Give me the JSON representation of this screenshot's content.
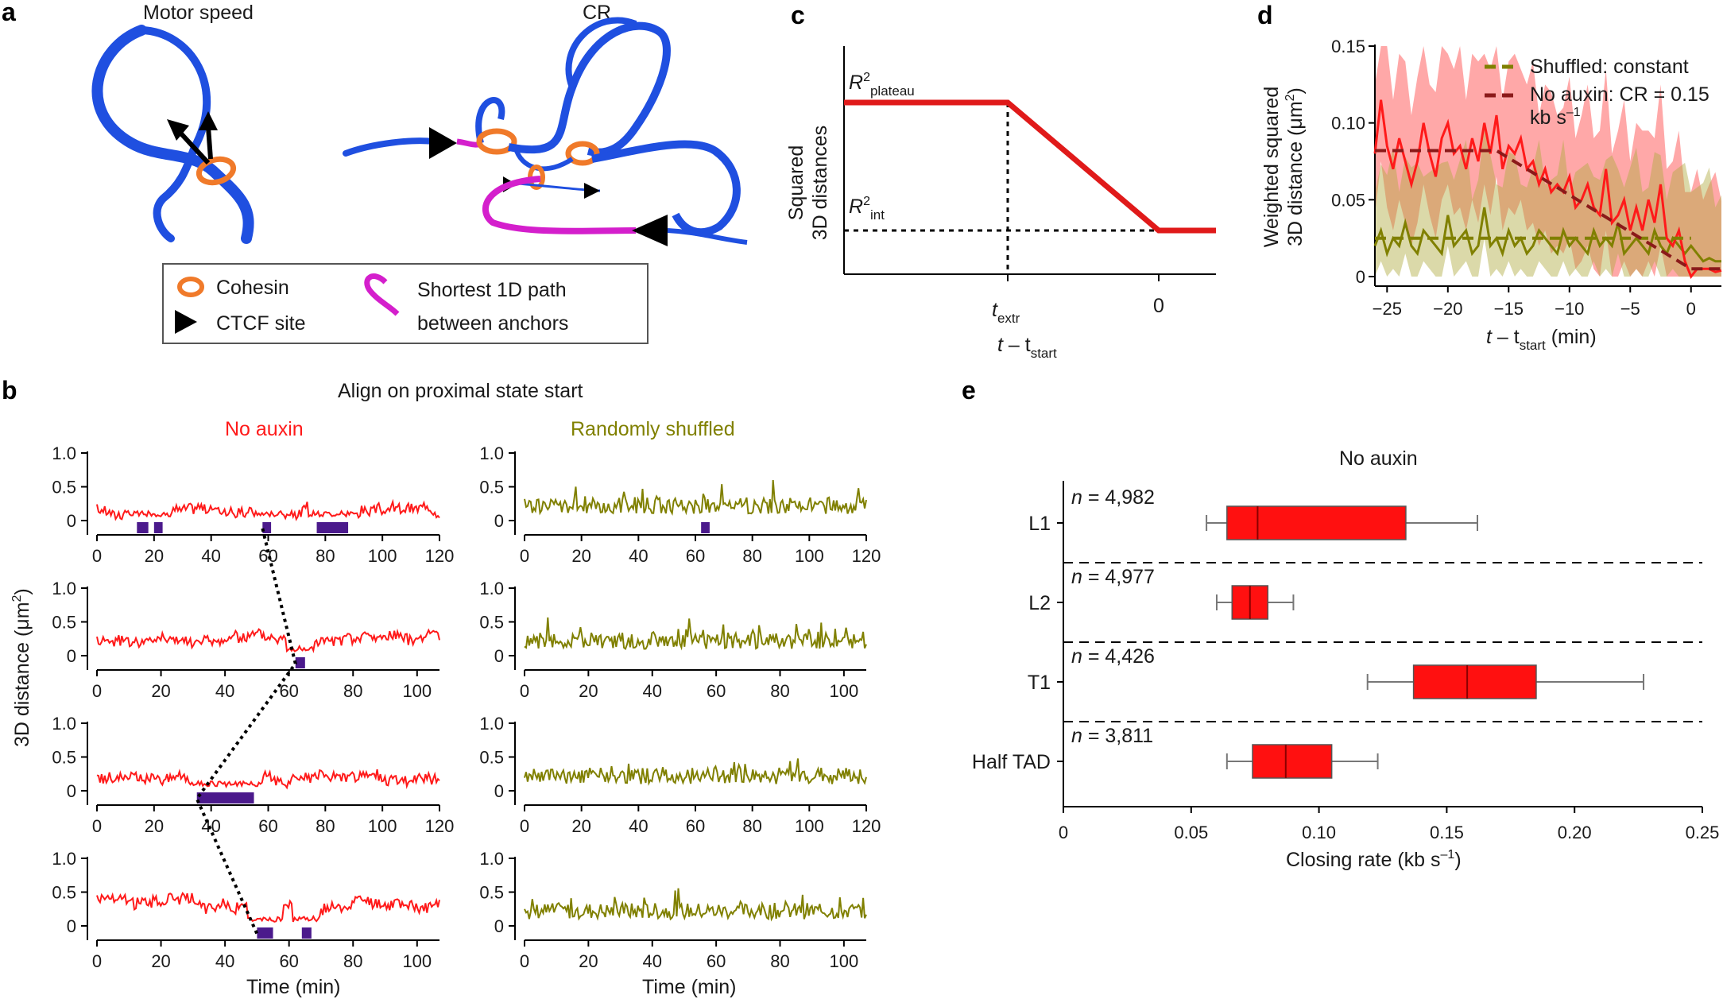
{
  "panels": {
    "a": {
      "label": "a",
      "left_title": "Motor speed",
      "right_title": "CR",
      "legend": {
        "cohesin": "Cohesin",
        "ctcf": "CTCF site",
        "path_line1": "Shortest 1D path",
        "path_line2": "between anchors"
      }
    },
    "b": {
      "label": "b",
      "title": "Align on proximal state start",
      "left_header": "No auxin",
      "right_header": "Randomly shuffled",
      "ylabel": "3D distance (μm",
      "ylabel_sup": "2",
      "ylabel_end": ")",
      "xlabel": "Time (min)",
      "yticks": [
        "0",
        "0.5",
        "1.0"
      ]
    },
    "c": {
      "label": "c",
      "ylabel_line1": "Squared",
      "ylabel_line2": "3D distances",
      "r_plateau": "R",
      "r_plateau_sup": "2",
      "r_plateau_sub": "plateau",
      "r_int": "R",
      "r_int_sup": "2",
      "r_int_sub": "int",
      "t_extr": "t",
      "t_extr_sub": "extr",
      "zero": "0",
      "xlabel_t": "t",
      "xlabel_mid": " – t",
      "xlabel_sub": "start"
    },
    "d": {
      "label": "d",
      "ylabel_line1": "Weighted squared",
      "ylabel_line2": "3D distance (μm",
      "ylabel_sup": "2",
      "ylabel_end": ")",
      "legend_shuffled": "Shuffled: constant",
      "legend_noauxin": "No auxin: CR = 0.15",
      "legend_noauxin_unit": "kb s",
      "legend_noauxin_sup": "–1",
      "xlabel_t": "t",
      "xlabel_mid": " – t",
      "xlabel_sub": "start",
      "xlabel_end": " (min)"
    },
    "e": {
      "label": "e",
      "title": "No auxin",
      "xlabel": "Closing rate (kb s",
      "xlabel_sup": "–1",
      "xlabel_end": ")"
    }
  },
  "colors": {
    "red": "#ff1a1a",
    "olive": "#808000",
    "dark_red": "#8b1a1a",
    "chromatin_blue": "#1f4fe0",
    "cohesin_orange": "#f07a2a",
    "path_magenta": "#d41fcc",
    "purple": "#4b1a8c"
  },
  "chart_data": [
    {
      "id": "b_traces",
      "type": "line",
      "title": "Align on proximal state start",
      "xlabel": "Time (min)",
      "ylabel": "3D distance (μm2)",
      "ylim": [
        0,
        1.0
      ],
      "rows": [
        {
          "xticks": [
            0,
            20,
            40,
            60,
            80,
            100,
            120
          ],
          "xmax": 120,
          "proximal_blocks": [
            [
              14,
              18
            ],
            [
              20,
              23
            ],
            [
              58,
              61
            ],
            [
              77,
              88
            ]
          ],
          "shuffled_blocks": [
            [
              62,
              65
            ]
          ],
          "baseline": 0.15
        },
        {
          "xticks": [
            0,
            20,
            40,
            60,
            80,
            100
          ],
          "xmax": 107,
          "proximal_blocks": [
            [
              62,
              65
            ]
          ],
          "shuffled_blocks": [],
          "baseline": 0.25
        },
        {
          "xticks": [
            0,
            20,
            40,
            60,
            80,
            100,
            120
          ],
          "xmax": 120,
          "proximal_blocks": [
            [
              35,
              55
            ]
          ],
          "shuffled_blocks": [],
          "baseline": 0.2
        },
        {
          "xticks": [
            0,
            20,
            40,
            60,
            80,
            100
          ],
          "xmax": 107,
          "proximal_blocks": [
            [
              50,
              55
            ],
            [
              64,
              67
            ]
          ],
          "shuffled_blocks": [],
          "baseline": 0.3
        }
      ]
    },
    {
      "id": "d_weighted",
      "type": "line",
      "xlabel": "t – tstart (min)",
      "ylabel": "Weighted squared 3D distance (μm2)",
      "xlim": [
        -26,
        2.5
      ],
      "ylim": [
        0,
        0.15
      ],
      "xticks": [
        -25,
        -20,
        -15,
        -10,
        -5,
        0
      ],
      "yticks": [
        0,
        0.05,
        0.1,
        0.15
      ],
      "ytick_labels": [
        "0",
        "0.05",
        "0.10",
        "0.15"
      ],
      "series": [
        {
          "name": "No auxin",
          "x": [
            -26,
            -25.5,
            -25,
            -24.5,
            -24,
            -23.5,
            -23,
            -22.5,
            -22,
            -21.5,
            -21,
            -20.5,
            -20,
            -19.5,
            -19,
            -18.5,
            -18,
            -17.5,
            -17,
            -16.5,
            -16,
            -15.5,
            -15,
            -14.5,
            -14,
            -13.5,
            -13,
            -12.5,
            -12,
            -11.5,
            -11,
            -10.5,
            -10,
            -9.5,
            -9,
            -8.5,
            -8,
            -7.5,
            -7,
            -6.5,
            -6,
            -5.5,
            -5,
            -4.5,
            -4,
            -3.5,
            -3,
            -2.5,
            -2,
            -1.5,
            -1,
            -0.5,
            0,
            0.5,
            1,
            1.5,
            2,
            2.5
          ],
          "values": [
            0.08,
            0.115,
            0.085,
            0.07,
            0.09,
            0.075,
            0.06,
            0.075,
            0.1,
            0.08,
            0.065,
            0.09,
            0.1,
            0.08,
            0.085,
            0.07,
            0.09,
            0.075,
            0.1,
            0.08,
            0.105,
            0.07,
            0.085,
            0.08,
            0.09,
            0.07,
            0.075,
            0.06,
            0.07,
            0.055,
            0.06,
            0.055,
            0.065,
            0.045,
            0.05,
            0.06,
            0.045,
            0.04,
            0.07,
            0.035,
            0.04,
            0.05,
            0.03,
            0.045,
            0.03,
            0.05,
            0.035,
            0.06,
            0.025,
            0.02,
            0.03,
            0.01,
            0.0,
            0.005,
            0.005,
            0.005,
            0.003,
            0.004
          ]
        },
        {
          "name": "Randomly shuffled",
          "x": [
            -26,
            -25.5,
            -25,
            -24.5,
            -24,
            -23.5,
            -23,
            -22.5,
            -22,
            -21.5,
            -21,
            -20.5,
            -20,
            -19.5,
            -19,
            -18.5,
            -18,
            -17.5,
            -17,
            -16.5,
            -16,
            -15.5,
            -15,
            -14.5,
            -14,
            -13.5,
            -13,
            -12.5,
            -12,
            -11.5,
            -11,
            -10.5,
            -10,
            -9.5,
            -9,
            -8.5,
            -8,
            -7.5,
            -7,
            -6.5,
            -6,
            -5.5,
            -5,
            -4.5,
            -4,
            -3.5,
            -3,
            -2.5,
            -2,
            -1.5,
            -1,
            -0.5,
            0,
            0.5,
            1,
            1.5,
            2,
            2.5
          ],
          "values": [
            0.02,
            0.03,
            0.015,
            0.025,
            0.02,
            0.035,
            0.02,
            0.015,
            0.03,
            0.025,
            0.02,
            0.015,
            0.04,
            0.02,
            0.025,
            0.03,
            0.015,
            0.02,
            0.045,
            0.02,
            0.025,
            0.015,
            0.03,
            0.02,
            0.025,
            0.015,
            0.02,
            0.03,
            0.025,
            0.02,
            0.015,
            0.03,
            0.02,
            0.025,
            0.02,
            0.015,
            0.03,
            0.02,
            0.025,
            0.02,
            0.035,
            0.015,
            0.02,
            0.025,
            0.02,
            0.015,
            0.03,
            0.02,
            0.015,
            0.025,
            0.02,
            0.015,
            0.02,
            0.015,
            0.01,
            0.012,
            0.01,
            0.01
          ]
        },
        {
          "name": "Shuffled: constant",
          "x": [
            -26,
            0
          ],
          "values": [
            0.025,
            0.025
          ]
        },
        {
          "name": "No auxin: CR = 0.15 kb s–1",
          "x": [
            -26,
            -16,
            0,
            2.5
          ],
          "values": [
            0.082,
            0.082,
            0.005,
            0.005
          ]
        }
      ]
    },
    {
      "id": "e_closing_rate",
      "type": "box",
      "title": "No auxin",
      "xlabel": "Closing rate (kb s–1)",
      "xlim": [
        0,
        0.25
      ],
      "xticks": [
        0,
        0.05,
        0.1,
        0.15,
        0.2,
        0.25
      ],
      "xtick_labels": [
        "0",
        "0.05",
        "0.10",
        "0.15",
        "0.20",
        "0.25"
      ],
      "categories": [
        "L1",
        "L2",
        "T1",
        "Half TAD"
      ],
      "n_labels": [
        "n = 4,982",
        "n = 4,977",
        "n = 4,426",
        "n = 3,811"
      ],
      "boxes": [
        {
          "whisker_low": 0.056,
          "q1": 0.064,
          "median": 0.076,
          "q3": 0.134,
          "whisker_high": 0.162
        },
        {
          "whisker_low": 0.06,
          "q1": 0.066,
          "median": 0.073,
          "q3": 0.08,
          "whisker_high": 0.09
        },
        {
          "whisker_low": 0.119,
          "q1": 0.137,
          "median": 0.158,
          "q3": 0.185,
          "whisker_high": 0.227
        },
        {
          "whisker_low": 0.064,
          "q1": 0.074,
          "median": 0.087,
          "q3": 0.105,
          "whisker_high": 0.123
        }
      ]
    }
  ]
}
